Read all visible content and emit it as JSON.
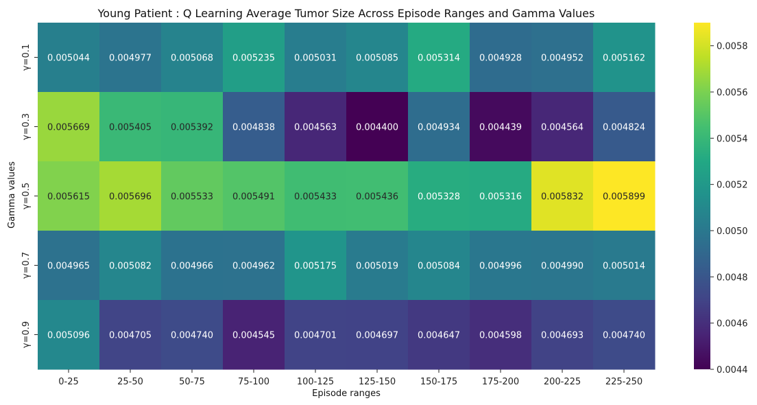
{
  "chart_data": {
    "type": "heatmap",
    "title": "Young Patient : Q Learning Average Tumor Size Across Episode Ranges and Gamma Values",
    "xlabel": "Episode ranges",
    "ylabel": "Gamma values",
    "x_categories": [
      "0-25",
      "25-50",
      "50-75",
      "75-100",
      "100-125",
      "125-150",
      "150-175",
      "175-200",
      "200-225",
      "225-250"
    ],
    "y_categories": [
      "γ=0.1",
      "γ=0.3",
      "γ=0.5",
      "γ=0.7",
      "γ=0.9"
    ],
    "values": [
      [
        0.005044,
        0.004977,
        0.005068,
        0.005235,
        0.005031,
        0.005085,
        0.005314,
        0.004928,
        0.004952,
        0.005162
      ],
      [
        0.005669,
        0.005405,
        0.005392,
        0.004838,
        0.004563,
        0.0044,
        0.004934,
        0.004439,
        0.004564,
        0.004824
      ],
      [
        0.005615,
        0.005696,
        0.005533,
        0.005491,
        0.005433,
        0.005436,
        0.005328,
        0.005316,
        0.005832,
        0.005899
      ],
      [
        0.004965,
        0.005082,
        0.004966,
        0.004962,
        0.005175,
        0.005019,
        0.005084,
        0.004996,
        0.00499,
        0.005014
      ],
      [
        0.005096,
        0.004705,
        0.00474,
        0.004545,
        0.004701,
        0.004697,
        0.004647,
        0.004598,
        0.004693,
        0.00474
      ]
    ],
    "value_labels": [
      [
        "0.005044",
        "0.004977",
        "0.005068",
        "0.005235",
        "0.005031",
        "0.005085",
        "0.005314",
        "0.004928",
        "0.004952",
        "0.005162"
      ],
      [
        "0.005669",
        "0.005405",
        "0.005392",
        "0.004838",
        "0.004563",
        "0.004400",
        "0.004934",
        "0.004439",
        "0.004564",
        "0.004824"
      ],
      [
        "0.005615",
        "0.005696",
        "0.005533",
        "0.005491",
        "0.005433",
        "0.005436",
        "0.005328",
        "0.005316",
        "0.005832",
        "0.005899"
      ],
      [
        "0.004965",
        "0.005082",
        "0.004966",
        "0.004962",
        "0.005175",
        "0.005019",
        "0.005084",
        "0.004996",
        "0.004990",
        "0.005014"
      ],
      [
        "0.005096",
        "0.004705",
        "0.004740",
        "0.004545",
        "0.004701",
        "0.004697",
        "0.004647",
        "0.004598",
        "0.004693",
        "0.004740"
      ]
    ],
    "colormap": "viridis",
    "color_range": [
      0.0044,
      0.0059
    ],
    "colorbar_ticks": [
      0.0044,
      0.0046,
      0.0048,
      0.005,
      0.0052,
      0.0054,
      0.0056,
      0.0058
    ],
    "colorbar_tick_labels": [
      "0.0044",
      "0.0046",
      "0.0048",
      "0.0050",
      "0.0052",
      "0.0054",
      "0.0056",
      "0.0058"
    ],
    "grid": false,
    "legend": "colorbar-right"
  }
}
